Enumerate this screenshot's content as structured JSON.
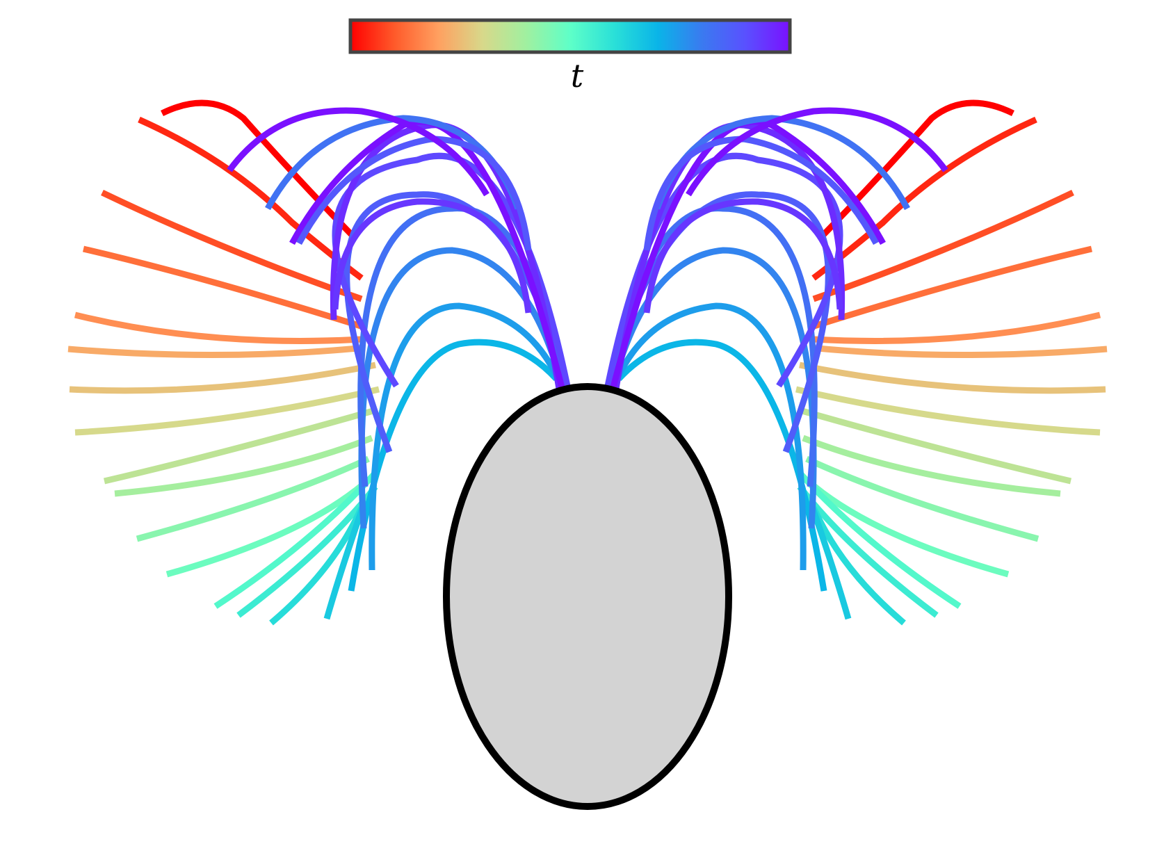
{
  "colorbar": {
    "label": "t",
    "stops": [
      "#ff0000",
      "#ff5a2a",
      "#ffa060",
      "#d8d88a",
      "#a0f0a0",
      "#5effc8",
      "#2ae0d8",
      "#0ab4e8",
      "#3a7af0",
      "#5a50ff",
      "#7a10ff"
    ],
    "border_color": "#444444"
  },
  "body_shape": {
    "fill": "#d3d3d3",
    "stroke": "#000000"
  },
  "filaments": {
    "count_per_side": 24,
    "earliest_color": "#ff0000",
    "latest_color": "#7a10ff"
  }
}
